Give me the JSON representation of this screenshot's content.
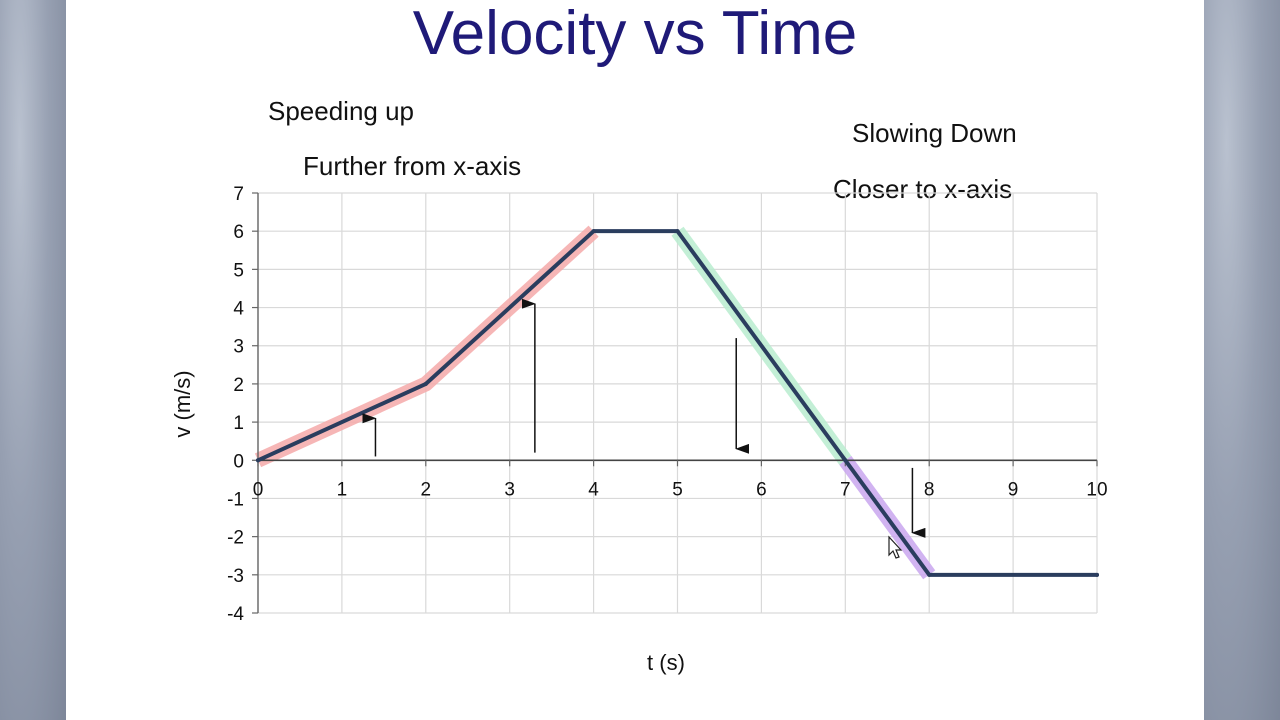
{
  "title": "Velocity vs Time",
  "annotations": {
    "speeding_up": "Speeding up",
    "further": "Further from x-axis",
    "slowing_down": "Slowing Down",
    "closer": "Closer to x-axis"
  },
  "colors": {
    "title": "#1f1a78",
    "line": "#2a3d5e",
    "speeding_highlight": "#f4a9a9",
    "slowing_highlight_positive": "#b9eccf",
    "slowing_highlight_negative": "#c9a6ee",
    "grid": "#d9d9d9"
  },
  "chart_data": {
    "type": "line",
    "xlabel": "t (s)",
    "ylabel": "v (m/s)",
    "xlim": [
      0,
      10
    ],
    "ylim": [
      -4,
      7
    ],
    "xticks": [
      0,
      1,
      2,
      3,
      4,
      5,
      6,
      7,
      8,
      9,
      10
    ],
    "yticks": [
      -4,
      -3,
      -2,
      -1,
      0,
      1,
      2,
      3,
      4,
      5,
      6,
      7
    ],
    "grid": true,
    "series": [
      {
        "x": [
          0,
          2,
          4,
          5,
          7,
          8,
          10
        ],
        "y": [
          0,
          2,
          6,
          6,
          0,
          -3,
          -3
        ]
      }
    ],
    "highlights": [
      {
        "label": "speeding",
        "x": [
          0,
          2,
          4
        ],
        "y": [
          0,
          2,
          6
        ],
        "color": "#f4a9a9"
      },
      {
        "label": "slowing",
        "x": [
          5,
          7
        ],
        "y": [
          6,
          0
        ],
        "color": "#b9eccf"
      },
      {
        "label": "speeding-negative",
        "x": [
          7,
          8
        ],
        "y": [
          0,
          -3
        ],
        "color": "#c9a6ee"
      }
    ],
    "arrows": [
      {
        "x": 1.4,
        "from": 0.1,
        "to": 1.1,
        "direction": "up"
      },
      {
        "x": 3.3,
        "from": 0.2,
        "to": 4.1,
        "direction": "up"
      },
      {
        "x": 5.7,
        "from": 3.2,
        "to": 0.3,
        "direction": "down"
      },
      {
        "x": 7.8,
        "from": -0.2,
        "to": -1.9,
        "direction": "down"
      }
    ]
  }
}
